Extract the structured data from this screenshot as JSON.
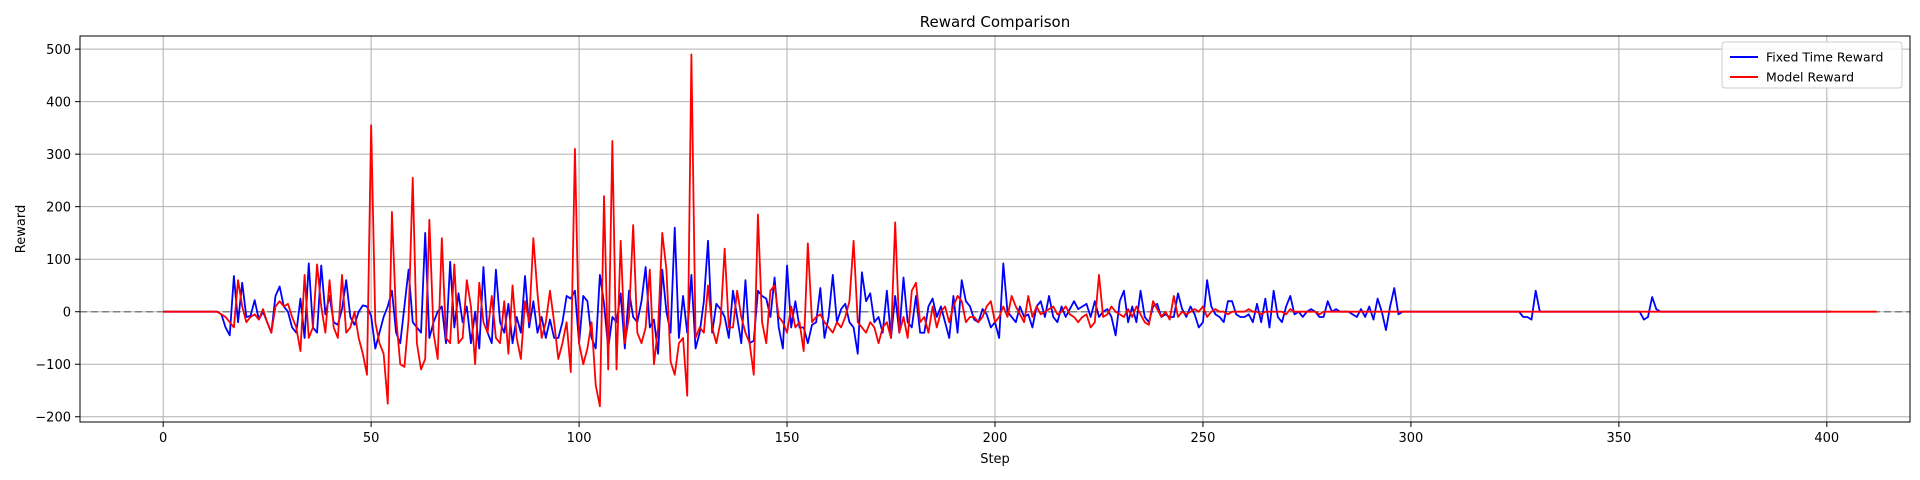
{
  "chart_data": {
    "type": "line",
    "title": "Reward Comparison",
    "xlabel": "Step",
    "ylabel": "Reward",
    "xlim": [
      -20,
      420
    ],
    "ylim": [
      -210,
      525
    ],
    "xticks": [
      0,
      50,
      100,
      150,
      200,
      250,
      300,
      350,
      400
    ],
    "yticks": [
      -200,
      -100,
      0,
      100,
      200,
      300,
      400,
      500
    ],
    "grid": true,
    "legend_position": "top-right",
    "reference_line": {
      "y": 0,
      "style": "dashed",
      "color": "#808080"
    },
    "series": [
      {
        "name": "Fixed Time Reward",
        "color": "#0000ff",
        "values": [
          0,
          0,
          0,
          0,
          0,
          0,
          0,
          0,
          0,
          0,
          0,
          0,
          0,
          0,
          -5,
          -30,
          -45,
          68,
          -20,
          55,
          -10,
          -8,
          22,
          -15,
          0,
          -20,
          -40,
          30,
          48,
          10,
          0,
          -30,
          -40,
          25,
          -50,
          92,
          -30,
          -40,
          88,
          -5,
          30,
          -20,
          -25,
          5,
          60,
          -10,
          -25,
          0,
          12,
          10,
          -8,
          -70,
          -40,
          -10,
          10,
          40,
          -40,
          -60,
          10,
          80,
          -20,
          -30,
          -40,
          150,
          -50,
          -20,
          0,
          10,
          -60,
          95,
          -30,
          35,
          -20,
          10,
          -60,
          0,
          -70,
          85,
          -40,
          -60,
          80,
          -20,
          -40,
          15,
          -60,
          -10,
          -40,
          68,
          -30,
          20,
          -40,
          -10,
          -50,
          -15,
          -50,
          -50,
          -20,
          30,
          25,
          40,
          -60,
          30,
          20,
          -50,
          -70,
          70,
          15,
          -70,
          -10,
          -20,
          35,
          -70,
          40,
          -10,
          -20,
          20,
          85,
          -30,
          -15,
          -80,
          80,
          0,
          -40,
          160,
          -50,
          30,
          -40,
          70,
          -70,
          -40,
          20,
          135,
          -40,
          15,
          5,
          -10,
          -50,
          40,
          -10,
          -60,
          60,
          -60,
          -55,
          40,
          30,
          25,
          -10,
          65,
          -30,
          -70,
          88,
          -30,
          20,
          -30,
          -30,
          -60,
          -25,
          -20,
          45,
          -50,
          -10,
          70,
          -20,
          5,
          15,
          -20,
          -30,
          -80,
          75,
          20,
          35,
          -20,
          -10,
          -40,
          40,
          -50,
          30,
          -40,
          65,
          -20,
          -30,
          30,
          -40,
          -40,
          10,
          25,
          -10,
          10,
          -20,
          -50,
          30,
          -40,
          60,
          20,
          10,
          -15,
          -20,
          5,
          -5,
          -30,
          -20,
          -50,
          92,
          0,
          -10,
          -20,
          10,
          -10,
          -5,
          -30,
          10,
          20,
          -10,
          30,
          -10,
          -20,
          10,
          -10,
          5,
          20,
          5,
          10,
          15,
          -10,
          20,
          -10,
          0,
          5,
          -10,
          -45,
          20,
          40,
          -20,
          10,
          -20,
          40,
          -10,
          -20,
          10,
          15,
          -10,
          -5,
          -10,
          -10,
          35,
          5,
          -10,
          10,
          -5,
          -30,
          -20,
          60,
          10,
          -5,
          -10,
          -20,
          20,
          20,
          -5,
          -10,
          -10,
          -5,
          -20,
          15,
          -20,
          25,
          -30,
          40,
          -10,
          -20,
          10,
          30,
          -5,
          0,
          -10,
          0,
          5,
          0,
          -10,
          -10,
          20,
          0,
          5,
          0,
          0,
          0,
          -5,
          -10,
          5,
          -10,
          10,
          -15,
          25,
          0,
          -35,
          10,
          45,
          -5,
          0,
          0,
          0,
          0,
          0,
          0,
          0,
          0,
          0,
          0,
          0,
          0,
          0,
          0,
          0,
          0,
          0,
          0,
          0,
          0,
          0,
          0,
          0,
          0,
          0,
          0,
          0,
          0,
          0,
          -10,
          -10,
          -15,
          40,
          0,
          0,
          0,
          0,
          0,
          0,
          0,
          0,
          0,
          0,
          0,
          0,
          0,
          0,
          0,
          0,
          0,
          0,
          0,
          0,
          0,
          0,
          0,
          0,
          0,
          -15,
          -10,
          28,
          5,
          0,
          0,
          0,
          0,
          0,
          0,
          0,
          0,
          0,
          0,
          0,
          0,
          0,
          0,
          0,
          0,
          0,
          0,
          0,
          0,
          0,
          0,
          0,
          0,
          0,
          0,
          0,
          0,
          0,
          0,
          0,
          0,
          0,
          0,
          0,
          0,
          0,
          0,
          0,
          0,
          0,
          0
        ]
      },
      {
        "name": "Model Reward",
        "color": "#ff0000",
        "values": [
          0,
          0,
          0,
          0,
          0,
          0,
          0,
          0,
          0,
          0,
          0,
          0,
          0,
          0,
          -5,
          -10,
          -20,
          -30,
          60,
          10,
          -20,
          -10,
          -5,
          -15,
          5,
          -20,
          -40,
          10,
          20,
          10,
          15,
          -10,
          -30,
          -75,
          70,
          -50,
          -30,
          90,
          10,
          -40,
          60,
          -30,
          -50,
          70,
          -40,
          -30,
          0,
          -50,
          -80,
          -120,
          355,
          -20,
          -60,
          -80,
          -175,
          190,
          -10,
          -100,
          -105,
          -15,
          255,
          -60,
          -110,
          -90,
          175,
          -40,
          -90,
          140,
          -50,
          -60,
          90,
          -60,
          -50,
          60,
          10,
          -100,
          55,
          -20,
          -40,
          30,
          -50,
          -60,
          20,
          -80,
          50,
          -50,
          -90,
          20,
          -20,
          140,
          35,
          -50,
          -20,
          40,
          -20,
          -90,
          -60,
          -20,
          -115,
          310,
          -60,
          -100,
          -70,
          -20,
          -140,
          -180,
          220,
          -110,
          325,
          -110,
          135,
          -60,
          -10,
          165,
          -40,
          -60,
          -30,
          80,
          -100,
          -30,
          150,
          80,
          -95,
          -120,
          -60,
          -50,
          -160,
          490,
          -50,
          -30,
          -40,
          50,
          -30,
          -60,
          -20,
          120,
          -30,
          -30,
          40,
          -10,
          -40,
          -60,
          -120,
          185,
          -20,
          -60,
          40,
          50,
          -10,
          -20,
          -40,
          10,
          -30,
          -20,
          -75,
          130,
          -20,
          -10,
          -5,
          -20,
          -30,
          -40,
          -20,
          -30,
          -10,
          20,
          135,
          -20,
          -30,
          -40,
          -20,
          -30,
          -60,
          -30,
          -20,
          -50,
          170,
          -40,
          -10,
          -50,
          40,
          55,
          -20,
          -10,
          -40,
          10,
          -30,
          0,
          10,
          -20,
          10,
          30,
          20,
          -20,
          -10,
          -10,
          -20,
          -10,
          10,
          20,
          -20,
          -10,
          10,
          -10,
          30,
          10,
          -5,
          -20,
          30,
          -10,
          10,
          -5,
          0,
          5,
          10,
          -5,
          0,
          10,
          -5,
          -10,
          -20,
          -10,
          -5,
          -30,
          -20,
          70,
          -10,
          -5,
          10,
          0,
          -5,
          -10,
          5,
          -10,
          10,
          -5,
          -20,
          -25,
          20,
          5,
          -10,
          0,
          -15,
          30,
          -10,
          0,
          -5,
          0,
          5,
          0,
          10,
          -10,
          0,
          5,
          0,
          0,
          -5,
          0,
          0,
          0,
          0,
          5,
          0,
          0,
          -5,
          0,
          0,
          0,
          0,
          0,
          -5,
          5,
          0,
          0,
          0,
          0,
          0,
          0,
          -5,
          0,
          0,
          0,
          0,
          0,
          0,
          0,
          0,
          0,
          0,
          0,
          0,
          0,
          0,
          0,
          0,
          0,
          0,
          0,
          0,
          0,
          0,
          0,
          0,
          0,
          0,
          0,
          0,
          0,
          0,
          0,
          0,
          0,
          0,
          0,
          0,
          0,
          0,
          0,
          0,
          0,
          0,
          0,
          0,
          0,
          0,
          0,
          0,
          0,
          0,
          0,
          0,
          0,
          0,
          0,
          0,
          0,
          0,
          0,
          0,
          0,
          0,
          0,
          0,
          0,
          0,
          0,
          0,
          0,
          0,
          0,
          0,
          0,
          0,
          0,
          0,
          0,
          0,
          0,
          0,
          0,
          0,
          0,
          0,
          0,
          0,
          0,
          0,
          0,
          0,
          0,
          0,
          0,
          0,
          0,
          0,
          0,
          0,
          0,
          0,
          0,
          0,
          0,
          0,
          0,
          0,
          0,
          0,
          0,
          0,
          0,
          0,
          0,
          0,
          0,
          0,
          0,
          0,
          0,
          0,
          0,
          0,
          0,
          0,
          0,
          0,
          0,
          0,
          0,
          0,
          0,
          0,
          0,
          0
        ]
      }
    ]
  }
}
